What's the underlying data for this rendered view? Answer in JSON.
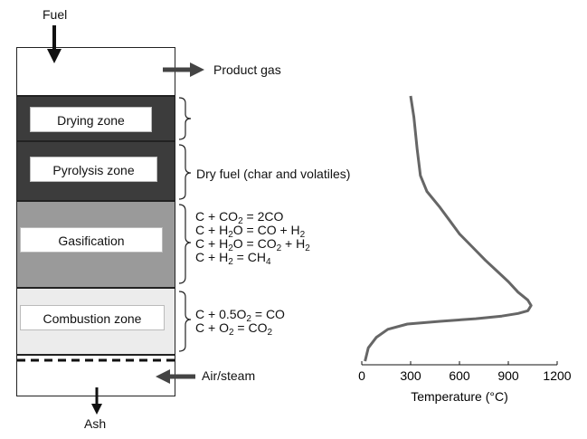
{
  "labels": {
    "fuel": "Fuel",
    "product_gas": "Product gas",
    "air_steam": "Air/steam",
    "ash": "Ash",
    "dry_fuel": "Dry fuel (char and volatiles)"
  },
  "zones": {
    "drying": "Drying zone",
    "pyrolysis": "Pyrolysis zone",
    "gasification": "Gasification",
    "combustion": "Combustion zone"
  },
  "colors": {
    "drying": "#3c3c3c",
    "pyrolysis": "#3c3c3c",
    "gasification": "#9a9a9a",
    "combustion": "#ececec",
    "curve": "#666666"
  },
  "equations": {
    "gasification": [
      {
        "parts": [
          [
            "C + CO",
            ""
          ],
          [
            "2",
            "sub"
          ],
          [
            " = 2CO",
            ""
          ]
        ]
      },
      {
        "parts": [
          [
            "C + H",
            ""
          ],
          [
            "2",
            "sub"
          ],
          [
            "O = CO + H",
            ""
          ],
          [
            "2",
            "sub"
          ]
        ]
      },
      {
        "parts": [
          [
            "C + H",
            ""
          ],
          [
            "2",
            "sub"
          ],
          [
            "O = CO",
            ""
          ],
          [
            "2",
            "sub"
          ],
          [
            " + H",
            ""
          ],
          [
            "2",
            "sub"
          ]
        ]
      },
      {
        "parts": [
          [
            "C + H",
            ""
          ],
          [
            "2",
            "sub"
          ],
          [
            " = CH",
            ""
          ],
          [
            "4",
            "sub"
          ]
        ]
      }
    ],
    "combustion": [
      {
        "parts": [
          [
            "C + 0.5O",
            ""
          ],
          [
            "2",
            "sub"
          ],
          [
            " = CO",
            ""
          ]
        ]
      },
      {
        "parts": [
          [
            "C + O",
            ""
          ],
          [
            "2",
            "sub"
          ],
          [
            " = CO",
            ""
          ],
          [
            "2",
            "sub"
          ]
        ]
      }
    ]
  },
  "chart_data": {
    "type": "line",
    "xlabel": "Temperature (°C)",
    "xlim": [
      0,
      1200
    ],
    "xticks": [
      0,
      300,
      600,
      900,
      1200
    ],
    "series": [
      {
        "x": [
          300,
          320,
          340,
          360,
          400,
          480,
          540,
          600,
          680,
          760,
          830,
          900,
          960,
          1020,
          1040,
          1020,
          960,
          860,
          700,
          480,
          280,
          160,
          90,
          40,
          20
        ],
        "y_fraction": [
          0.0,
          0.08,
          0.2,
          0.3,
          0.36,
          0.42,
          0.47,
          0.52,
          0.57,
          0.62,
          0.66,
          0.7,
          0.74,
          0.77,
          0.79,
          0.81,
          0.82,
          0.83,
          0.84,
          0.85,
          0.86,
          0.88,
          0.91,
          0.95,
          1.0
        ]
      }
    ]
  }
}
